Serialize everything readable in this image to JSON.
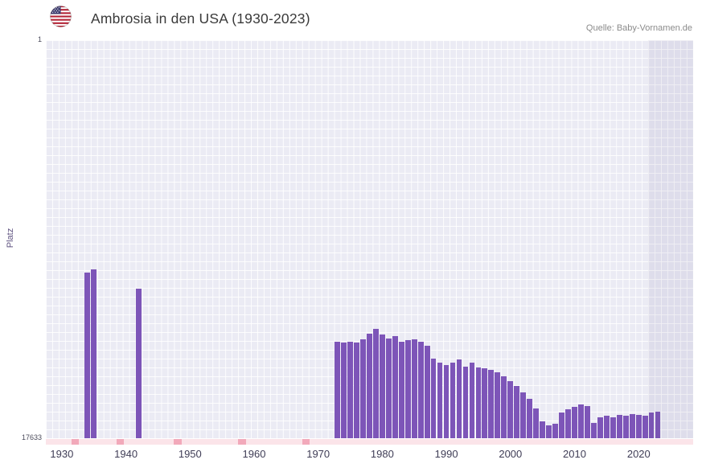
{
  "header": {
    "title": "Ambrosia in den USA (1930-2023)",
    "source": "Quelle: Baby-Vornamen.de",
    "flag_icon": "usa-flag"
  },
  "y_axis": {
    "label": "Platz",
    "top_tick": "1",
    "bottom_tick": "17633"
  },
  "chart_data": {
    "type": "bar",
    "title": "Ambrosia in den USA (1930-2023)",
    "xlabel": "",
    "ylabel": "Platz",
    "y_axis_inverted": true,
    "ylim": [
      1,
      17633
    ],
    "x_domain": [
      1928,
      2029
    ],
    "x_ticks": [
      1930,
      1940,
      1950,
      1960,
      1970,
      1980,
      1990,
      2000,
      2010,
      2020
    ],
    "grid": true,
    "bar_color": "#7d55b8",
    "plot_background": "#ebebf4",
    "highlight_from_year": 2022,
    "low_rank_marker_years": [
      1932,
      1939,
      1948,
      1958,
      1968
    ],
    "series": [
      {
        "name": "Platz",
        "points": [
          {
            "year": 1934,
            "rank": 10300
          },
          {
            "year": 1935,
            "rank": 10150
          },
          {
            "year": 1942,
            "rank": 11000
          },
          {
            "year": 1973,
            "rank": 13350
          },
          {
            "year": 1974,
            "rank": 13400
          },
          {
            "year": 1975,
            "rank": 13350
          },
          {
            "year": 1976,
            "rank": 13400
          },
          {
            "year": 1977,
            "rank": 13250
          },
          {
            "year": 1978,
            "rank": 13000
          },
          {
            "year": 1979,
            "rank": 12800
          },
          {
            "year": 1980,
            "rank": 13050
          },
          {
            "year": 1981,
            "rank": 13200
          },
          {
            "year": 1982,
            "rank": 13100
          },
          {
            "year": 1983,
            "rank": 13350
          },
          {
            "year": 1984,
            "rank": 13300
          },
          {
            "year": 1985,
            "rank": 13250
          },
          {
            "year": 1986,
            "rank": 13350
          },
          {
            "year": 1987,
            "rank": 13550
          },
          {
            "year": 1988,
            "rank": 14100
          },
          {
            "year": 1989,
            "rank": 14300
          },
          {
            "year": 1990,
            "rank": 14400
          },
          {
            "year": 1991,
            "rank": 14300
          },
          {
            "year": 1992,
            "rank": 14150
          },
          {
            "year": 1993,
            "rank": 14450
          },
          {
            "year": 1994,
            "rank": 14300
          },
          {
            "year": 1995,
            "rank": 14500
          },
          {
            "year": 1996,
            "rank": 14550
          },
          {
            "year": 1997,
            "rank": 14600
          },
          {
            "year": 1998,
            "rank": 14700
          },
          {
            "year": 1999,
            "rank": 14900
          },
          {
            "year": 2000,
            "rank": 15100
          },
          {
            "year": 2001,
            "rank": 15300
          },
          {
            "year": 2002,
            "rank": 15600
          },
          {
            "year": 2003,
            "rank": 15900
          },
          {
            "year": 2004,
            "rank": 16300
          },
          {
            "year": 2005,
            "rank": 16900
          },
          {
            "year": 2006,
            "rank": 17050
          },
          {
            "year": 2007,
            "rank": 17000
          },
          {
            "year": 2008,
            "rank": 16500
          },
          {
            "year": 2009,
            "rank": 16350
          },
          {
            "year": 2010,
            "rank": 16250
          },
          {
            "year": 2011,
            "rank": 16150
          },
          {
            "year": 2012,
            "rank": 16200
          },
          {
            "year": 2013,
            "rank": 16950
          },
          {
            "year": 2014,
            "rank": 16700
          },
          {
            "year": 2015,
            "rank": 16650
          },
          {
            "year": 2016,
            "rank": 16700
          },
          {
            "year": 2017,
            "rank": 16600
          },
          {
            "year": 2018,
            "rank": 16650
          },
          {
            "year": 2019,
            "rank": 16550
          },
          {
            "year": 2020,
            "rank": 16600
          },
          {
            "year": 2021,
            "rank": 16650
          },
          {
            "year": 2022,
            "rank": 16500
          },
          {
            "year": 2023,
            "rank": 16450
          }
        ]
      }
    ]
  }
}
